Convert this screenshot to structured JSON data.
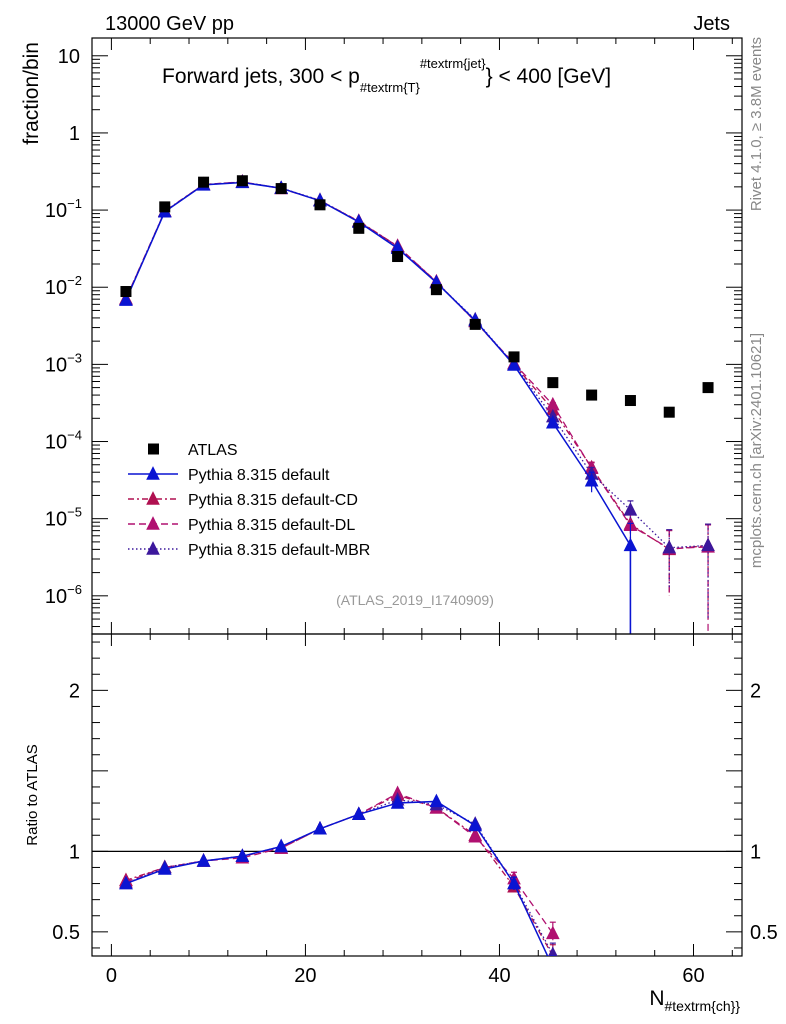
{
  "header": {
    "left": "13000 GeV pp",
    "right": "Jets"
  },
  "side_labels": {
    "rivet": "Rivet 4.1.0, ≥ 3.8M events",
    "mcplots": "mcplots.cern.ch [arXiv:2401.10621]"
  },
  "colors": {
    "data": "#000000",
    "default": "#0a14d2",
    "cd": "#b01050",
    "dl": "#b01070",
    "mbr": "#3c189c"
  },
  "chart_data": {
    "type": "line",
    "title_parts": {
      "main": "Forward jets, 300 < p",
      "sub": "#textrm{T}",
      "sup": "#textrm{jet}",
      "end": "} < 400 [GeV]"
    },
    "analysis_tag": "(ATLAS_2019_I1740909)",
    "xlabel_main": "N",
    "xlabel_sub": "#textrm{ch}}",
    "ylabel_main": "fraction/bin",
    "ylabel_ratio": "Ratio to ATLAS",
    "xlim": [
      -2,
      65
    ],
    "ylim_main": [
      3.2e-07,
      17
    ],
    "ylim_ratio": [
      0.35,
      2.35
    ],
    "x_ticks": [
      "0",
      "20",
      "40",
      "60"
    ],
    "y_ticks_main": [
      {
        "m": "10",
        "e": ""
      },
      {
        "m": "1",
        "e": ""
      },
      {
        "m": "10",
        "e": "−1"
      },
      {
        "m": "10",
        "e": "−2"
      },
      {
        "m": "10",
        "e": "−3"
      },
      {
        "m": "10",
        "e": "−4"
      },
      {
        "m": "10",
        "e": "−5"
      },
      {
        "m": "10",
        "e": "−6"
      }
    ],
    "y_ticks_ratio": [
      "2",
      "1",
      "0.5"
    ],
    "x": [
      1.5,
      5.5,
      9.5,
      13.5,
      17.5,
      21.5,
      25.5,
      29.5,
      33.5,
      37.5,
      41.5,
      45.5,
      49.5,
      53.5,
      57.5,
      61.5
    ],
    "data_series": {
      "name": "ATLAS",
      "values": [
        0.0088,
        0.11,
        0.23,
        0.24,
        0.19,
        0.117,
        0.058,
        0.025,
        0.0093,
        0.0033,
        0.00125,
        0.00058,
        0.0004,
        0.00034,
        0.00024,
        0.0005
      ]
    },
    "series": [
      {
        "name": "Pythia 8.315 default",
        "color_key": "default",
        "dash": "",
        "values": [
          0.0068,
          0.095,
          0.212,
          0.228,
          0.192,
          0.132,
          0.07,
          0.032,
          0.0115,
          0.0037,
          0.00098,
          0.000175,
          3.1e-05,
          4.5e-06,
          null,
          null
        ],
        "errors": [
          0,
          0,
          0,
          0,
          0,
          0,
          0,
          0,
          0,
          0,
          4e-05,
          1.5e-05,
          9e-06,
          4.2e-06,
          null,
          null
        ],
        "ratio": [
          0.8,
          0.89,
          0.94,
          0.97,
          1.03,
          1.14,
          1.23,
          1.3,
          1.31,
          1.16,
          0.8,
          0.28,
          null,
          null,
          null,
          null
        ]
      },
      {
        "name": "Pythia 8.315 default-CD",
        "color_key": "cd",
        "dash": "6,3,2,3",
        "values": [
          0.0071,
          0.097,
          0.215,
          0.231,
          0.192,
          0.133,
          0.072,
          0.034,
          0.0118,
          0.0036,
          0.001,
          0.00026,
          4.6e-05,
          8.5e-06,
          4e-06,
          4.5e-06
        ],
        "errors": [
          0,
          0,
          0,
          0,
          0,
          0,
          0,
          0,
          0,
          0,
          4e-05,
          2e-05,
          8e-06,
          3e-06,
          3e-06,
          4e-06
        ],
        "ratio": [
          0.82,
          0.9,
          0.94,
          0.97,
          1.02,
          1.14,
          1.23,
          1.35,
          1.27,
          1.1,
          0.78,
          0.35,
          null,
          null,
          null,
          null
        ]
      },
      {
        "name": "Pythia 8.315 default-DL",
        "color_key": "dl",
        "dash": "7,4",
        "values": [
          0.007,
          0.096,
          0.214,
          0.232,
          0.19,
          0.133,
          0.071,
          0.034,
          0.0117,
          0.0036,
          0.00103,
          0.0003,
          4.5e-05,
          8.2e-06,
          4.1e-06,
          4.3e-06
        ],
        "errors": [
          0,
          0,
          0,
          0,
          0,
          0,
          0,
          0,
          0,
          0,
          4e-05,
          2e-05,
          8e-06,
          3e-06,
          3e-06,
          4e-06
        ],
        "ratio": [
          0.81,
          0.9,
          0.94,
          0.96,
          1.02,
          1.14,
          1.23,
          1.36,
          1.27,
          1.09,
          0.83,
          0.49,
          null,
          null,
          null,
          null
        ]
      },
      {
        "name": "Pythia 8.315 default-MBR",
        "color_key": "mbr",
        "dash": "1.5,2.5",
        "values": [
          0.0069,
          0.096,
          0.213,
          0.23,
          0.193,
          0.134,
          0.071,
          0.033,
          0.0115,
          0.0038,
          0.00099,
          0.00021,
          3.8e-05,
          1.3e-05,
          4.2e-06,
          4.5e-06
        ],
        "errors": [
          0,
          0,
          0,
          0,
          0,
          0,
          0,
          0,
          0,
          0,
          4e-05,
          1.5e-05,
          8e-06,
          4e-06,
          3e-06,
          4e-06
        ],
        "ratio": [
          0.8,
          0.9,
          0.94,
          0.97,
          1.03,
          1.14,
          1.23,
          1.32,
          1.29,
          1.17,
          0.8,
          0.36,
          null,
          null,
          null,
          null
        ]
      }
    ]
  }
}
